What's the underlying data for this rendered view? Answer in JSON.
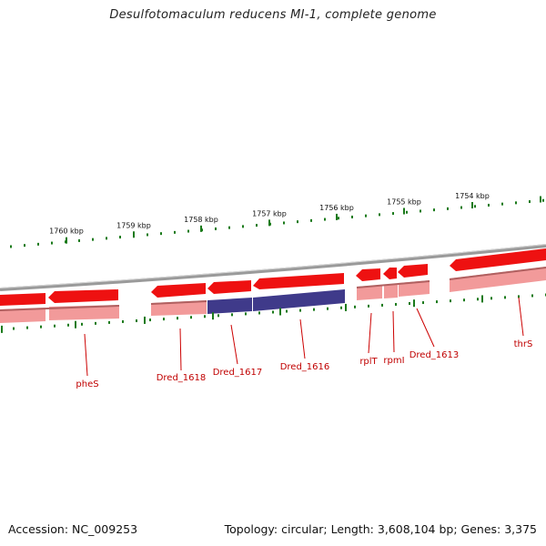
{
  "title": "Desulfotomaculum reducens MI-1, complete genome",
  "accession": "Accession: NC_009253",
  "summary": "Topology: circular; Length: 3,608,104 bp; Genes: 3,375",
  "colors": {
    "gene_forward": "#ee1111",
    "gene_reverse": "#f29a9a",
    "gene_hypothetical": "#3f3a8a",
    "tick": "#1a7a1a",
    "backbone": "#8f8f8f",
    "label_line": "#cc0000"
  },
  "ticks": [
    {
      "label": "1760 kbp"
    },
    {
      "label": "1759 kbp"
    },
    {
      "label": "1758 kbp"
    },
    {
      "label": "1757 kbp"
    },
    {
      "label": "1756 kbp"
    },
    {
      "label": "1755 kbp"
    },
    {
      "label": "1754 kbp"
    }
  ],
  "genes": [
    {
      "name": "pheS"
    },
    {
      "name": "Dred_1618"
    },
    {
      "name": "Dred_1617"
    },
    {
      "name": "Dred_1616"
    },
    {
      "name": "rplT"
    },
    {
      "name": "rpmI"
    },
    {
      "name": "Dred_1613"
    },
    {
      "name": "thrS"
    }
  ]
}
